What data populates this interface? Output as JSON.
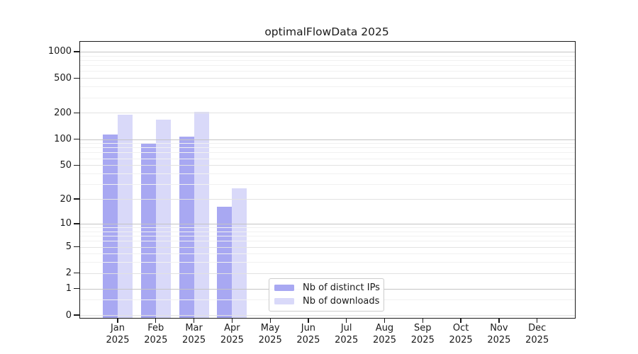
{
  "chart_data": {
    "type": "bar",
    "title": "optimalFlowData 2025",
    "categories": [
      "Jan",
      "Feb",
      "Mar",
      "Apr",
      "May",
      "Jun",
      "Jul",
      "Aug",
      "Sep",
      "Oct",
      "Nov",
      "Dec"
    ],
    "x_year_line": "2025",
    "series": [
      {
        "name": "Nb of distinct IPs",
        "color": "#a8a8f2",
        "values": [
          114,
          89,
          107,
          16,
          null,
          null,
          null,
          null,
          null,
          null,
          null,
          null
        ]
      },
      {
        "name": "Nb of downloads",
        "color": "#d9d9f9",
        "values": [
          191,
          167,
          207,
          27,
          null,
          null,
          null,
          null,
          null,
          null,
          null,
          null
        ]
      }
    ],
    "y_axis": {
      "scale": "log1p",
      "ticks": [
        0,
        1,
        2,
        5,
        10,
        20,
        50,
        100,
        200,
        500,
        1000
      ],
      "ylim": [
        0,
        1295
      ],
      "label": ""
    },
    "xlabel": "",
    "ylabel": "",
    "grid": true,
    "legend_position": "lower center"
  },
  "colors": {
    "grid_major_decade": "#c4c4c4",
    "grid_major": "#e2e2e2",
    "grid_minor": "#f1f1f1",
    "axis": "#1a1a1a",
    "background": "#ffffff"
  }
}
